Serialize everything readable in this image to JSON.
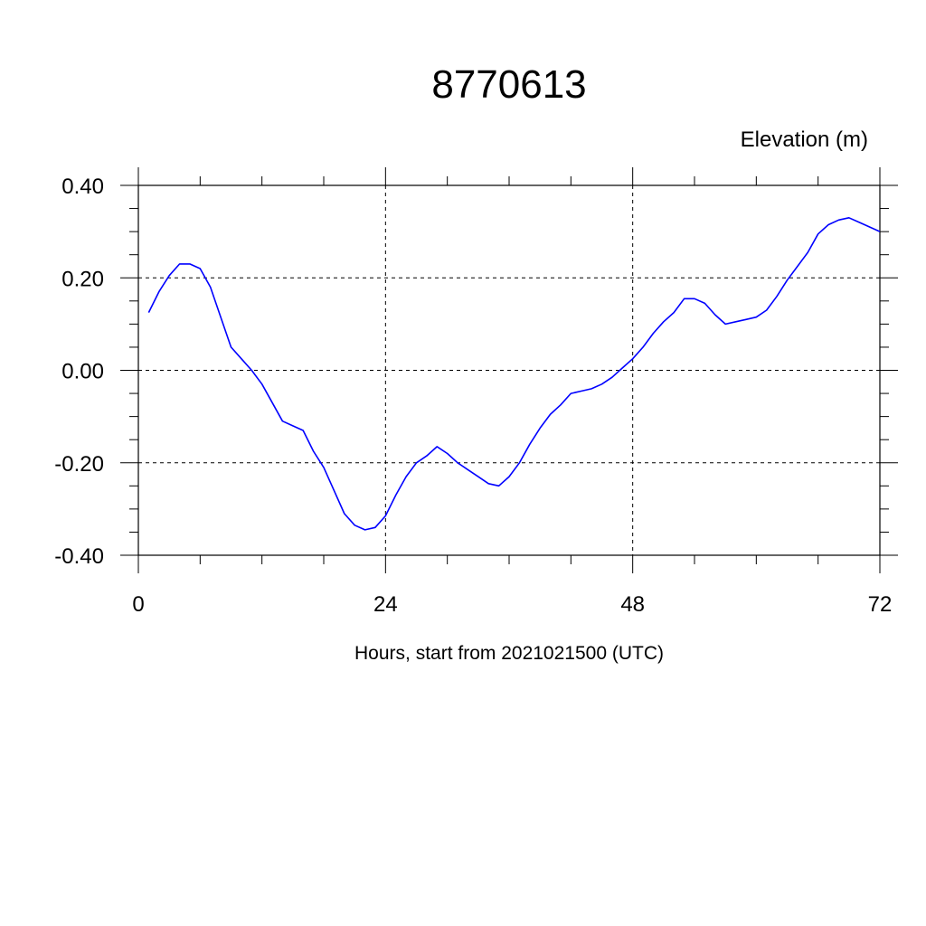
{
  "chart_data": {
    "type": "line",
    "title": "8770613",
    "unit_label": "Elevation (m)",
    "xlabel": "Hours, start from 2021021500 (UTC)",
    "xlim": [
      0,
      72
    ],
    "ylim": [
      -0.4,
      0.4
    ],
    "x_ticks": [
      0,
      24,
      48,
      72
    ],
    "x_tick_labels": [
      "0",
      "24",
      "48",
      "72"
    ],
    "y_ticks": [
      0.4,
      0.2,
      0.0,
      -0.2,
      -0.4
    ],
    "y_tick_labels": [
      "0.40",
      "0.20",
      "0.00",
      "-0.20",
      "-0.40"
    ],
    "grid": true,
    "series": [
      {
        "color": "#0000ff",
        "x": [
          1,
          2,
          3,
          4,
          5,
          6,
          7,
          8,
          9,
          10,
          11,
          12,
          13,
          14,
          15,
          16,
          17,
          18,
          19,
          20,
          21,
          22,
          23,
          24,
          25,
          26,
          27,
          28,
          29,
          30,
          31,
          32,
          33,
          34,
          35,
          36,
          37,
          38,
          39,
          40,
          41,
          42,
          43,
          44,
          45,
          46,
          47,
          48,
          49,
          50,
          51,
          52,
          53,
          54,
          55,
          56,
          57,
          58,
          59,
          60,
          61,
          62,
          63,
          64,
          65,
          66,
          67,
          68,
          69,
          70,
          71,
          72
        ],
        "values": [
          0.125,
          0.17,
          0.205,
          0.23,
          0.23,
          0.22,
          0.18,
          0.115,
          0.05,
          0.025,
          0.0,
          -0.03,
          -0.07,
          -0.11,
          -0.12,
          -0.13,
          -0.175,
          -0.21,
          -0.26,
          -0.31,
          -0.335,
          -0.345,
          -0.34,
          -0.315,
          -0.27,
          -0.23,
          -0.2,
          -0.185,
          -0.165,
          -0.18,
          -0.2,
          -0.215,
          -0.23,
          -0.245,
          -0.25,
          -0.23,
          -0.2,
          -0.16,
          -0.125,
          -0.095,
          -0.075,
          -0.05,
          -0.045,
          -0.04,
          -0.03,
          -0.015,
          0.005,
          0.025,
          0.05,
          0.08,
          0.105,
          0.125,
          0.155,
          0.155,
          0.145,
          0.12,
          0.1,
          0.105,
          0.11,
          0.115,
          0.13,
          0.16,
          0.195,
          0.225,
          0.255,
          0.295,
          0.315,
          0.325,
          0.33,
          0.32,
          0.31,
          0.3
        ]
      }
    ]
  }
}
